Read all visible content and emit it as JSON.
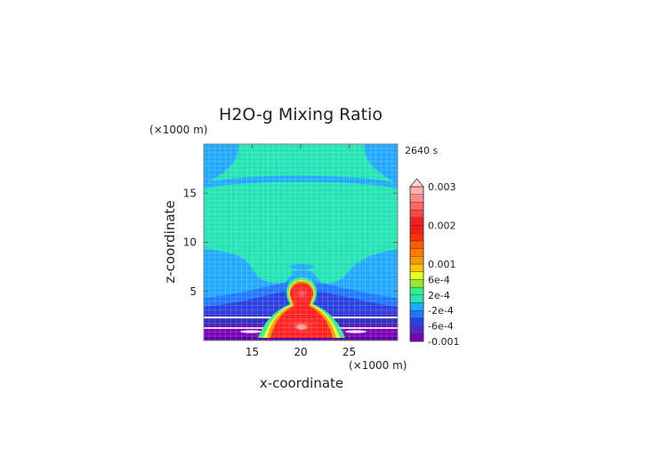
{
  "chart_data": {
    "type": "heatmap",
    "title": "H2O-g Mixing Ratio",
    "time_label": "2640 s",
    "xlabel": "x-coordinate",
    "ylabel": "z-coordinate",
    "x_unit": "(×1000 m)",
    "y_unit": "(×1000 m)",
    "xlim": [
      10,
      30
    ],
    "ylim": [
      0,
      20
    ],
    "x_ticks": [
      15,
      20,
      25
    ],
    "y_ticks": [
      5,
      10,
      15
    ],
    "grid": true,
    "colorbar": {
      "labels": [
        "0.003",
        "0.002",
        "0.001",
        "6e-4",
        "2e-4",
        "-2e-4",
        "-6e-4",
        "-0.001"
      ],
      "levels": [
        -0.001,
        -0.0008,
        -0.0006,
        -0.0004,
        -0.0002,
        0,
        0.0002,
        0.0004,
        0.0006,
        0.0008,
        0.001,
        0.0012,
        0.0014,
        0.0016,
        0.0018,
        0.002,
        0.0022,
        0.0024,
        0.0026,
        0.0028,
        0.003
      ],
      "colors": [
        "#7a00b8",
        "#4a2ad0",
        "#2a40e0",
        "#1f78ff",
        "#21a8ff",
        "#24e3b4",
        "#2ff08c",
        "#9bea2f",
        "#e8ff24",
        "#ffc400",
        "#ff9800",
        "#ff7a00",
        "#ff5a00",
        "#ff3000",
        "#ff1a1a",
        "#f02020",
        "#ff4646",
        "#ff6666",
        "#ff8a8a",
        "#ffb0b0"
      ],
      "extend_top": true
    }
  }
}
